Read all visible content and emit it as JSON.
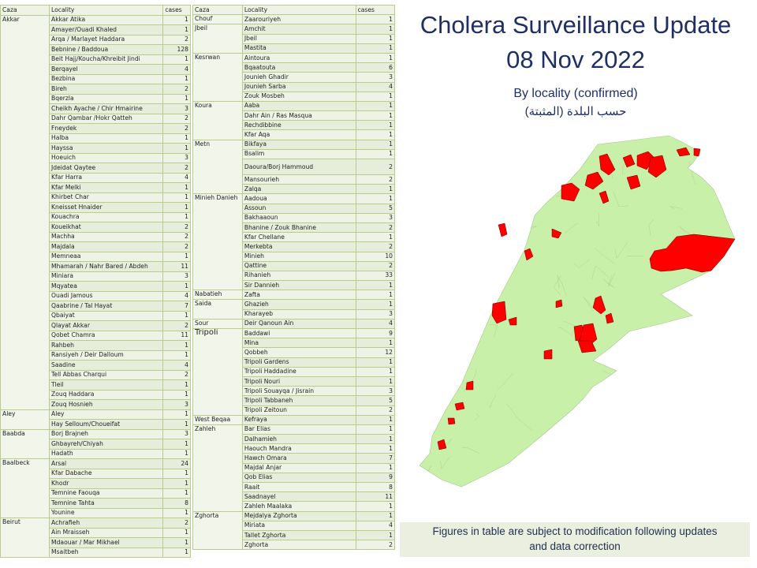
{
  "header": {
    "title": "Cholera Surveillance Update",
    "date": "08 Nov 2022",
    "subtitle": "By locality (confirmed)",
    "subtitle_ar": "حسب البلدة (المثبتة)"
  },
  "table_headers": {
    "caza": "Caza",
    "locality": "Locality",
    "cases": "cases"
  },
  "left_table": [
    {
      "caza": "Akkar",
      "rows": [
        [
          "Akkar Atika",
          1
        ],
        [
          "Amayer/Ouadi Khaled",
          1
        ],
        [
          "Arqa / Marlayet Haddara",
          2
        ],
        [
          "Bebnine / Baddoua",
          128
        ],
        [
          "Beit Hajj/Koucha/Khreibit  Jindi",
          1
        ],
        [
          "Berqayel",
          4
        ],
        [
          "Bezbina",
          1
        ],
        [
          "Bireh",
          2
        ],
        [
          "Bqerzla",
          1
        ],
        [
          "Cheikh Ayache / Chir Hmairine",
          3
        ],
        [
          "Dahr Qambar /Hokr Qatteh",
          2
        ],
        [
          "Fneydek",
          2
        ],
        [
          "Halba",
          1
        ],
        [
          "Hayssa",
          1
        ],
        [
          "Hoeuich",
          3
        ],
        [
          "Jdeidat Qaytee",
          2
        ],
        [
          "Kfar Harra",
          4
        ],
        [
          "Kfar Melki",
          1
        ],
        [
          "Khirbet Char",
          1
        ],
        [
          "Kneisset Hnaider",
          1
        ],
        [
          "Kouachra",
          1
        ],
        [
          "Koueikhat",
          2
        ],
        [
          "Machha",
          2
        ],
        [
          "Majdala",
          2
        ],
        [
          "Memneaa",
          1
        ],
        [
          "Mhamarah / Nahr Bared / Abdeh",
          11
        ],
        [
          "Miniara",
          3
        ],
        [
          "Mqyatea",
          1
        ],
        [
          "Ouadi Jamous",
          4
        ],
        [
          "Qaabrine / Tal Hayat",
          7
        ],
        [
          "Qbaiyat",
          1
        ],
        [
          "Qlayat Akkar",
          2
        ],
        [
          "Qobet Chamra",
          11
        ],
        [
          "Rahbeh",
          1
        ],
        [
          "Ransiyeh / Deir Dalloum",
          1
        ],
        [
          "Saadine",
          4
        ],
        [
          "Tell Abbas Charqui",
          2
        ],
        [
          "Tleil",
          1
        ],
        [
          "Zouq Haddara",
          1
        ],
        [
          "Zouq Hosnieh",
          3
        ]
      ]
    },
    {
      "caza": "Aley",
      "rows": [
        [
          "Aley",
          1
        ],
        [
          "Hay Selloum/Choueifat",
          1
        ]
      ]
    },
    {
      "caza": "Baabda",
      "rows": [
        [
          "Borj Brajneh",
          3
        ],
        [
          "Ghbayreh/Chiyah",
          1
        ],
        [
          "Hadath",
          1
        ]
      ]
    },
    {
      "caza": "Baalbeck",
      "rows": [
        [
          "Arsal",
          24
        ],
        [
          "Kfar Dabache",
          1
        ],
        [
          "Khodr",
          1
        ],
        [
          "Temnine Faouqa",
          1
        ],
        [
          "Temnine Tahta",
          8
        ],
        [
          "Younine",
          1
        ]
      ]
    },
    {
      "caza": "Beirut",
      "rows": [
        [
          "Achrafieh",
          2
        ],
        [
          "Ain Mraisseh",
          1
        ],
        [
          "Mdaouar / Mar Mikhael",
          1
        ],
        [
          "Msaitbeh",
          1
        ]
      ]
    }
  ],
  "right_table": [
    {
      "caza": "Chouf",
      "rows": [
        [
          "Zaarouriyeh",
          1
        ]
      ]
    },
    {
      "caza": "Jbeil",
      "rows": [
        [
          "Amchit",
          1
        ],
        [
          "Jbeil",
          1
        ],
        [
          "Mastita",
          1
        ]
      ]
    },
    {
      "caza": "Kesrwan",
      "rows": [
        [
          "Aintoura",
          1
        ],
        [
          "Bqaatouta",
          6
        ],
        [
          "Jounieh Ghadir",
          3
        ],
        [
          "Jounieh Sarba",
          4
        ],
        [
          "Zouk Mosbeh",
          1
        ]
      ]
    },
    {
      "caza": "Koura",
      "rows": [
        [
          "Aaba",
          1
        ],
        [
          "Dahr Ain / Ras Masqua",
          1
        ],
        [
          "Rechdibbine",
          1
        ],
        [
          "Kfar Aqa",
          1
        ]
      ]
    },
    {
      "caza": "Metn",
      "rows": [
        [
          "Bikfaya",
          1
        ],
        [
          "Bsalim",
          1
        ],
        [
          "Daoura/Borj  Hammoud",
          2
        ],
        [
          "Mansourieh",
          2
        ],
        [
          "Zalqa",
          1
        ]
      ]
    },
    {
      "caza": "Minieh Danieh",
      "rows": [
        [
          "Aadoua",
          1
        ],
        [
          "Assoun",
          5
        ],
        [
          "Bakhaaoun",
          3
        ],
        [
          "Bhanine / Zouk Bhanine",
          2
        ],
        [
          "Kfar Chellane",
          1
        ],
        [
          "Merkebta",
          2
        ],
        [
          "Minieh",
          10
        ],
        [
          "Qattine",
          2
        ],
        [
          "Rihanieh",
          33
        ],
        [
          "Sir Dannieh",
          1
        ]
      ]
    },
    {
      "caza": "Nabatieh",
      "rows": [
        [
          "Zafta",
          1
        ]
      ]
    },
    {
      "caza": "Saida",
      "rows": [
        [
          "Ghazieh",
          1
        ],
        [
          "Kharayeb",
          3
        ]
      ]
    },
    {
      "caza": "Sour",
      "rows": [
        [
          "Deir Qanoun Ain",
          4
        ]
      ]
    },
    {
      "caza": "Tripoli",
      "rows": [
        [
          "Baddawi",
          9
        ],
        [
          "Mina",
          1
        ],
        [
          "Qobbeh",
          12
        ],
        [
          "Tripoli Gardens",
          1
        ],
        [
          "Tripoli Haddadine",
          1
        ],
        [
          "Tripoli Nouri",
          1
        ],
        [
          "Tripoli Souayqa / Jisrain",
          3
        ],
        [
          "Tripoli Tabbaneh",
          5
        ],
        [
          "Tripoli Zeitoun",
          2
        ]
      ]
    },
    {
      "caza": "West Beqaa",
      "rows": [
        [
          "Kefraya",
          1
        ]
      ]
    },
    {
      "caza": "Zahleh",
      "rows": [
        [
          "Bar Elias",
          1
        ],
        [
          "Dalhamieh",
          1
        ],
        [
          "Haouch Mandra",
          1
        ],
        [
          "Hawch Omara",
          7
        ],
        [
          "Majdal Anjar",
          1
        ],
        [
          "Qob Elias",
          9
        ],
        [
          "Raait",
          8
        ],
        [
          "Saadnayel",
          11
        ],
        [
          "Zahleh Maalaka",
          1
        ]
      ]
    },
    {
      "caza": "Zghorta",
      "rows": [
        [
          "Mejdalya Zghorta",
          1
        ],
        [
          "Miriata",
          4
        ],
        [
          "Tallet Zghorta",
          1
        ],
        [
          "Zghorta",
          2
        ]
      ]
    }
  ],
  "map": {
    "base_color": "#c8f0a8",
    "case_color": "#ff0000",
    "border_color": "#a8c890"
  },
  "note": {
    "line1": "Figures in table are subject to modification following updates",
    "line2": "and data correction"
  }
}
